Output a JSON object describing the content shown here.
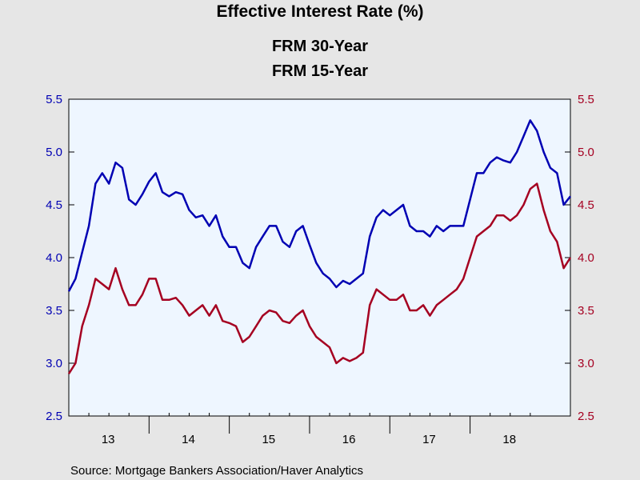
{
  "chart_data": {
    "type": "line",
    "title": "Effective Interest Rate (%)",
    "ylim": [
      2.5,
      5.5
    ],
    "left_yticks": [
      "2.5",
      "3.0",
      "3.5",
      "4.0",
      "4.5",
      "5.0",
      "5.5"
    ],
    "right_yticks": [
      "2.5",
      "3.0",
      "3.5",
      "4.0",
      "4.5",
      "5.0",
      "5.5"
    ],
    "x_categories": [
      "13",
      "14",
      "15",
      "16",
      "17",
      "18"
    ],
    "xlim": [
      "2013-01",
      "2019-04"
    ],
    "grid": false,
    "legend_placement": "top-center",
    "source": "Source:  Mortgage Bankers Association/Haver Analytics",
    "series": [
      {
        "name": "FRM 30-Year",
        "color": "#0000b3",
        "axis": "left",
        "x": [
          "2013-01",
          "2013-02",
          "2013-03",
          "2013-04",
          "2013-05",
          "2013-06",
          "2013-07",
          "2013-08",
          "2013-09",
          "2013-10",
          "2013-11",
          "2013-12",
          "2014-01",
          "2014-02",
          "2014-03",
          "2014-04",
          "2014-05",
          "2014-06",
          "2014-07",
          "2014-08",
          "2014-09",
          "2014-10",
          "2014-11",
          "2014-12",
          "2015-01",
          "2015-02",
          "2015-03",
          "2015-04",
          "2015-05",
          "2015-06",
          "2015-07",
          "2015-08",
          "2015-09",
          "2015-10",
          "2015-11",
          "2015-12",
          "2016-01",
          "2016-02",
          "2016-03",
          "2016-04",
          "2016-05",
          "2016-06",
          "2016-07",
          "2016-08",
          "2016-09",
          "2016-10",
          "2016-11",
          "2016-12",
          "2017-01",
          "2017-02",
          "2017-03",
          "2017-04",
          "2017-05",
          "2017-06",
          "2017-07",
          "2017-08",
          "2017-09",
          "2017-10",
          "2017-11",
          "2017-12",
          "2018-01",
          "2018-02",
          "2018-03",
          "2018-04",
          "2018-05",
          "2018-06",
          "2018-07",
          "2018-08",
          "2018-09",
          "2018-10",
          "2018-11",
          "2018-12",
          "2019-01",
          "2019-02",
          "2019-03",
          "2019-04"
        ],
        "values": [
          3.68,
          3.8,
          4.05,
          4.3,
          4.7,
          4.8,
          4.7,
          4.9,
          4.85,
          4.55,
          4.5,
          4.6,
          4.72,
          4.8,
          4.62,
          4.58,
          4.62,
          4.6,
          4.45,
          4.38,
          4.4,
          4.3,
          4.4,
          4.2,
          4.1,
          4.1,
          3.95,
          3.9,
          4.1,
          4.2,
          4.3,
          4.3,
          4.15,
          4.1,
          4.25,
          4.3,
          4.12,
          3.95,
          3.85,
          3.8,
          3.72,
          3.78,
          3.75,
          3.8,
          3.85,
          4.2,
          4.38,
          4.45,
          4.4,
          4.45,
          4.5,
          4.3,
          4.25,
          4.25,
          4.2,
          4.3,
          4.25,
          4.3,
          4.3,
          4.3,
          4.55,
          4.8,
          4.8,
          4.9,
          4.95,
          4.92,
          4.9,
          5.0,
          5.15,
          5.3,
          5.2,
          5.0,
          4.85,
          4.8,
          4.5,
          4.58
        ]
      },
      {
        "name": "FRM 15-Year",
        "color": "#a50021",
        "axis": "right",
        "x": [
          "2013-01",
          "2013-02",
          "2013-03",
          "2013-04",
          "2013-05",
          "2013-06",
          "2013-07",
          "2013-08",
          "2013-09",
          "2013-10",
          "2013-11",
          "2013-12",
          "2014-01",
          "2014-02",
          "2014-03",
          "2014-04",
          "2014-05",
          "2014-06",
          "2014-07",
          "2014-08",
          "2014-09",
          "2014-10",
          "2014-11",
          "2014-12",
          "2015-01",
          "2015-02",
          "2015-03",
          "2015-04",
          "2015-05",
          "2015-06",
          "2015-07",
          "2015-08",
          "2015-09",
          "2015-10",
          "2015-11",
          "2015-12",
          "2016-01",
          "2016-02",
          "2016-03",
          "2016-04",
          "2016-05",
          "2016-06",
          "2016-07",
          "2016-08",
          "2016-09",
          "2016-10",
          "2016-11",
          "2016-12",
          "2017-01",
          "2017-02",
          "2017-03",
          "2017-04",
          "2017-05",
          "2017-06",
          "2017-07",
          "2017-08",
          "2017-09",
          "2017-10",
          "2017-11",
          "2017-12",
          "2018-01",
          "2018-02",
          "2018-03",
          "2018-04",
          "2018-05",
          "2018-06",
          "2018-07",
          "2018-08",
          "2018-09",
          "2018-10",
          "2018-11",
          "2018-12",
          "2019-01",
          "2019-02",
          "2019-03",
          "2019-04"
        ],
        "values": [
          2.9,
          3.0,
          3.35,
          3.55,
          3.8,
          3.75,
          3.7,
          3.9,
          3.7,
          3.55,
          3.55,
          3.65,
          3.8,
          3.8,
          3.6,
          3.6,
          3.62,
          3.55,
          3.45,
          3.5,
          3.55,
          3.45,
          3.55,
          3.4,
          3.38,
          3.35,
          3.2,
          3.25,
          3.35,
          3.45,
          3.5,
          3.48,
          3.4,
          3.38,
          3.45,
          3.5,
          3.35,
          3.25,
          3.2,
          3.15,
          3.0,
          3.05,
          3.02,
          3.05,
          3.1,
          3.55,
          3.7,
          3.65,
          3.6,
          3.6,
          3.65,
          3.5,
          3.5,
          3.55,
          3.45,
          3.55,
          3.6,
          3.65,
          3.7,
          3.8,
          4.0,
          4.2,
          4.25,
          4.3,
          4.4,
          4.4,
          4.35,
          4.4,
          4.5,
          4.65,
          4.7,
          4.45,
          4.25,
          4.15,
          3.9,
          4.0
        ]
      }
    ]
  }
}
